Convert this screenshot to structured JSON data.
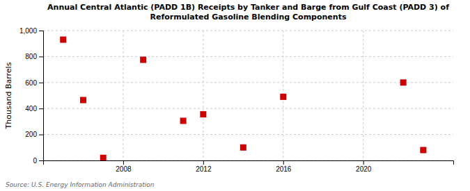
{
  "chart_data": {
    "type": "scatter",
    "title": "Annual Central Atlantic (PADD 1B) Receipts by Tanker and Barge from Gulf Coast (PADD 3) of\nReformulated Gasoline Blending Components",
    "y_label": "Thousand Barrels",
    "annotations": [
      "Source: U.S. Energy Information Administration"
    ],
    "x": [
      2005,
      2006,
      2007,
      2009,
      2011,
      2012,
      2014,
      2016,
      2022,
      2023
    ],
    "values": [
      930,
      465,
      20,
      775,
      305,
      355,
      100,
      490,
      600,
      80
    ],
    "color": "#cc0000",
    "marker": "square",
    "xlim": [
      2004,
      2024.5
    ],
    "ylim": [
      0,
      1000
    ],
    "xticks": [
      2008,
      2012,
      2016,
      2020
    ],
    "yticks": [
      0,
      200,
      400,
      600,
      800,
      {
        "value": 1000,
        "label": "1,000"
      }
    ],
    "grid": true
  }
}
